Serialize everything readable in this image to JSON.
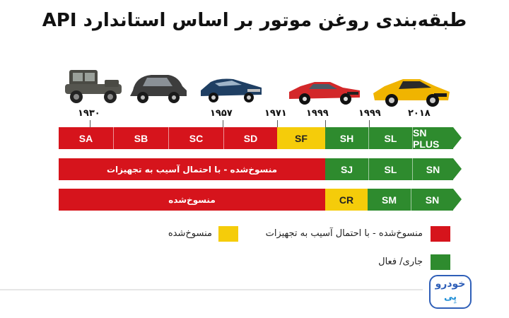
{
  "title": "طبقه‌بندی روغن موتور بر اساس استاندارد API",
  "years": [
    "۱۹۳۰",
    "۱۹۵۷",
    "۱۹۷۱",
    "۱۹۹۹",
    "۱۹۹۹",
    "۲۰۱۸"
  ],
  "colors": {
    "obsolete_risk": "#d6141c",
    "obsolete": "#f5cc0a",
    "current": "#2e8b2e"
  },
  "rows": [
    {
      "segments": [
        "SA",
        "SB",
        "SC",
        "SD",
        "SF",
        "SH",
        "SL",
        "SN PLUS"
      ]
    },
    {
      "long_label": "منسوخ‌شده - با احتمال آسیب به تجهیزات",
      "segments": [
        "SJ",
        "SL",
        "SN"
      ]
    },
    {
      "long_label": "منسوخ‌شده",
      "segments": [
        "CR",
        "SM",
        "SN"
      ]
    }
  ],
  "legend": {
    "obsolete_risk": "منسوخ‌شده - با احتمال آسیب به تجهیزات",
    "obsolete": "منسوخ‌شده",
    "current": "جاری/ فعال"
  },
  "logo": {
    "line1": "خودرو",
    "line2": "پِی"
  },
  "car_icons": [
    "vintage-car-icon",
    "classic-sedan-icon",
    "muscle-car-blue-icon",
    "sports-car-red-icon",
    "sports-car-yellow-icon"
  ]
}
